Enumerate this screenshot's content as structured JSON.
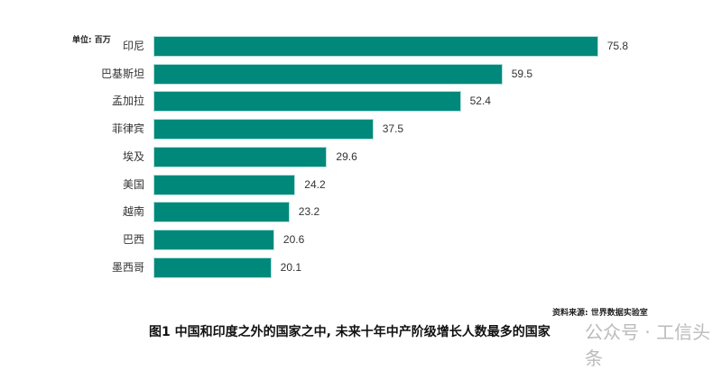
{
  "unit_label": "单位: 百万",
  "source": "资料来源: 世界数据实验室",
  "title": "图1  中国和印度之外的国家之中, 未来十年中产阶级增长人数最多的国家",
  "watermark": "公众号 · 工信头条",
  "colors": {
    "bar": "#00897b"
  },
  "chart_data": {
    "type": "bar",
    "orientation": "horizontal",
    "title": "图1  中国和印度之外的国家之中, 未来十年中产阶级增长人数最多的国家",
    "unit": "单位: 百万",
    "categories": [
      "印尼",
      "巴基斯坦",
      "孟加拉",
      "菲律宾",
      "埃及",
      "美国",
      "越南",
      "巴西",
      "墨西哥"
    ],
    "values": [
      75.8,
      59.5,
      52.4,
      37.5,
      29.6,
      24.2,
      23.2,
      20.6,
      20.1
    ],
    "value_labels": [
      "75.8",
      "59.5",
      "52.4",
      "37.5",
      "29.6",
      "24.2",
      "23.2",
      "20.6",
      "20.1"
    ],
    "xlabel": "",
    "ylabel": "",
    "grid": false,
    "legend": null,
    "source": "资料来源: 世界数据实验室"
  }
}
